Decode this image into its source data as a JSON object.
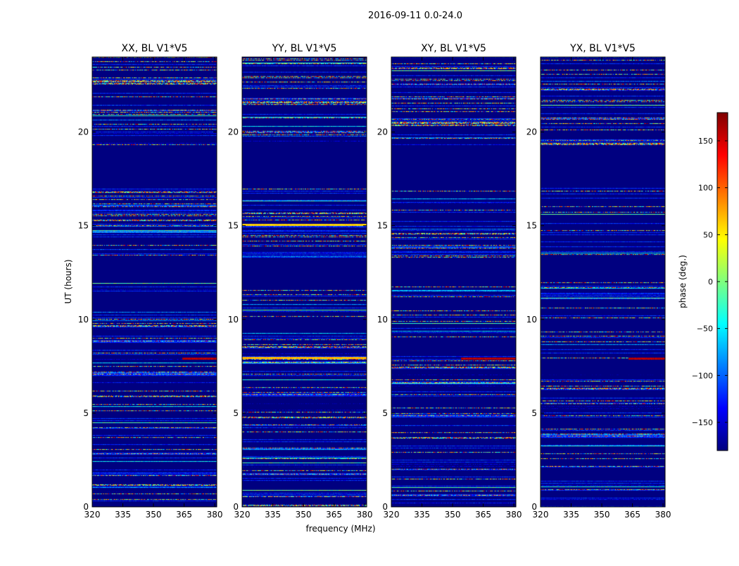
{
  "figure": {
    "suptitle": "2016-09-11 0.0-24.0",
    "xlabel": "frequency (MHz)",
    "ylabel": "UT (hours)"
  },
  "chart_data": [
    {
      "type": "heatmap",
      "title": "XX, BL V1*V5",
      "xlabel": "frequency (MHz)",
      "ylabel": "UT (hours)",
      "xlim": [
        320,
        381
      ],
      "ylim": [
        0,
        24
      ],
      "xticks": [
        320,
        335,
        350,
        365,
        380
      ],
      "yticks": [
        0,
        5,
        10,
        15,
        20
      ],
      "value_units": "phase (deg.)",
      "masked_ut_ranges": [
        [
          12.0,
          13.3
        ],
        [
          17.0,
          19.3
        ]
      ],
      "coherent_bands": [
        {
          "ut": [
            7.85,
            7.95
          ],
          "freq_from": 364,
          "phase": 160
        }
      ]
    },
    {
      "type": "heatmap",
      "title": "YY, BL V1*V5",
      "xlabel": "frequency (MHz)",
      "ylabel": "UT (hours)",
      "xlim": [
        320,
        381
      ],
      "ylim": [
        0,
        24
      ],
      "xticks": [
        320,
        335,
        350,
        365,
        380
      ],
      "yticks": [
        0,
        5,
        10,
        15,
        20
      ],
      "value_units": "phase (deg.)",
      "masked_ut_ranges": [
        [
          12.0,
          13.3
        ],
        [
          17.0,
          19.3
        ]
      ],
      "coherent_bands": [
        {
          "ut": [
            7.9,
            8.0
          ],
          "freq_from": 320,
          "phase": 70
        },
        {
          "ut": [
            15.0,
            15.1
          ],
          "freq_from": 320,
          "phase": 60
        }
      ]
    },
    {
      "type": "heatmap",
      "title": "XY, BL V1*V5",
      "xlabel": "frequency (MHz)",
      "ylabel": "UT (hours)",
      "xlim": [
        320,
        381
      ],
      "ylim": [
        0,
        24
      ],
      "xticks": [
        320,
        335,
        350,
        365,
        380
      ],
      "yticks": [
        0,
        5,
        10,
        15,
        20
      ],
      "value_units": "phase (deg.)",
      "masked_ut_ranges": [
        [
          12.0,
          13.3
        ],
        [
          17.0,
          19.3
        ]
      ],
      "coherent_bands": [
        {
          "ut": [
            7.85,
            7.95
          ],
          "freq_from": 354,
          "phase": 160
        }
      ]
    },
    {
      "type": "heatmap",
      "title": "YX, BL V1*V5",
      "xlabel": "frequency (MHz)",
      "ylabel": "UT (hours)",
      "xlim": [
        320,
        381
      ],
      "ylim": [
        0,
        24
      ],
      "xticks": [
        320,
        335,
        350,
        365,
        380
      ],
      "yticks": [
        0,
        5,
        10,
        15,
        20
      ],
      "value_units": "phase (deg.)",
      "masked_ut_ranges": [
        [
          12.0,
          13.3
        ],
        [
          17.0,
          19.3
        ]
      ],
      "coherent_bands": [
        {
          "ut": [
            7.85,
            7.95
          ],
          "freq_from": 363,
          "phase": 160
        }
      ]
    }
  ],
  "colorbar": {
    "label": "phase (deg.)",
    "range": [
      -180,
      180
    ],
    "ticks": [
      150,
      100,
      50,
      0,
      -50,
      -100,
      -150
    ],
    "tick_labels": [
      "150",
      "100",
      "50",
      "0",
      "−50",
      "−100",
      "−150"
    ],
    "colormap": "jet",
    "colors": [
      "#00007f",
      "#0000ff",
      "#007fff",
      "#00ffff",
      "#7fff7f",
      "#ffff00",
      "#ff7f00",
      "#ff0000",
      "#7f0000"
    ]
  }
}
